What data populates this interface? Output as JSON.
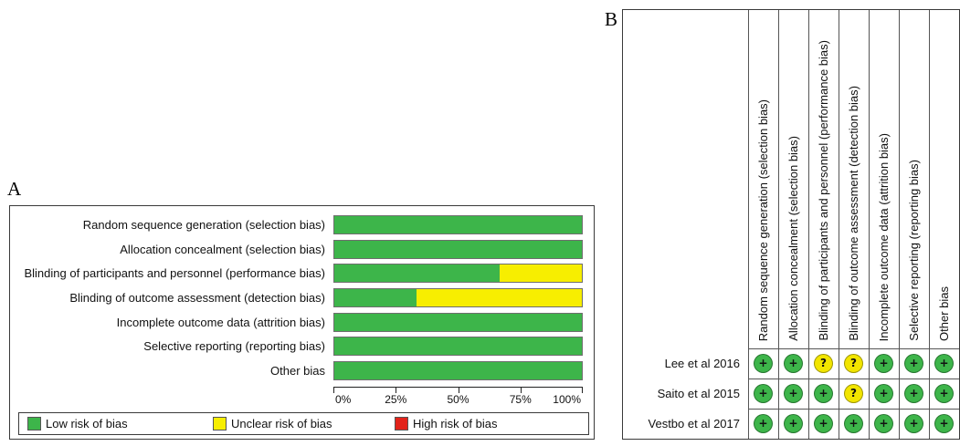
{
  "panel_labels": {
    "a": "A",
    "b": "B"
  },
  "chart_data": [
    {
      "type": "bar",
      "orientation": "horizontal",
      "stacked": true,
      "categories": [
        "Random sequence generation (selection bias)",
        "Allocation concealment (selection bias)",
        "Blinding of participants and personnel (performance bias)",
        "Blinding of outcome assessment (detection bias)",
        "Incomplete outcome data (attrition bias)",
        "Selective reporting (reporting bias)",
        "Other bias"
      ],
      "series": [
        {
          "name": "Low risk of bias",
          "color": "#3db54a",
          "values": [
            100,
            100,
            66.7,
            33.3,
            100,
            100,
            100
          ]
        },
        {
          "name": "Unclear risk of bias",
          "color": "#f7ee00",
          "values": [
            0,
            0,
            33.3,
            66.7,
            0,
            0,
            0
          ]
        },
        {
          "name": "High risk of bias",
          "color": "#e2231a",
          "values": [
            0,
            0,
            0,
            0,
            0,
            0,
            0
          ]
        }
      ],
      "xticks": [
        "0%",
        "25%",
        "50%",
        "75%",
        "100%"
      ],
      "xlim": [
        0,
        100
      ],
      "grid": false,
      "legend_position": "bottom"
    },
    {
      "type": "table",
      "columns": [
        "Random sequence generation (selection bias)",
        "Allocation concealment (selection bias)",
        "Blinding of participants and personnel (performance bias)",
        "Blinding of outcome assessment (detection bias)",
        "Incomplete outcome data (attrition bias)",
        "Selective reporting (reporting bias)",
        "Other bias"
      ],
      "rows": [
        {
          "study": "Lee et al 2016",
          "judgements": [
            "+",
            "+",
            "?",
            "?",
            "+",
            "+",
            "+"
          ]
        },
        {
          "study": "Saito et al 2015",
          "judgements": [
            "+",
            "+",
            "+",
            "?",
            "+",
            "+",
            "+"
          ]
        },
        {
          "study": "Vestbo et al 2017",
          "judgements": [
            "+",
            "+",
            "+",
            "+",
            "+",
            "+",
            "+"
          ]
        }
      ],
      "symbol_colors": {
        "+": "#3db54a",
        "?": "#f2e500"
      }
    }
  ]
}
